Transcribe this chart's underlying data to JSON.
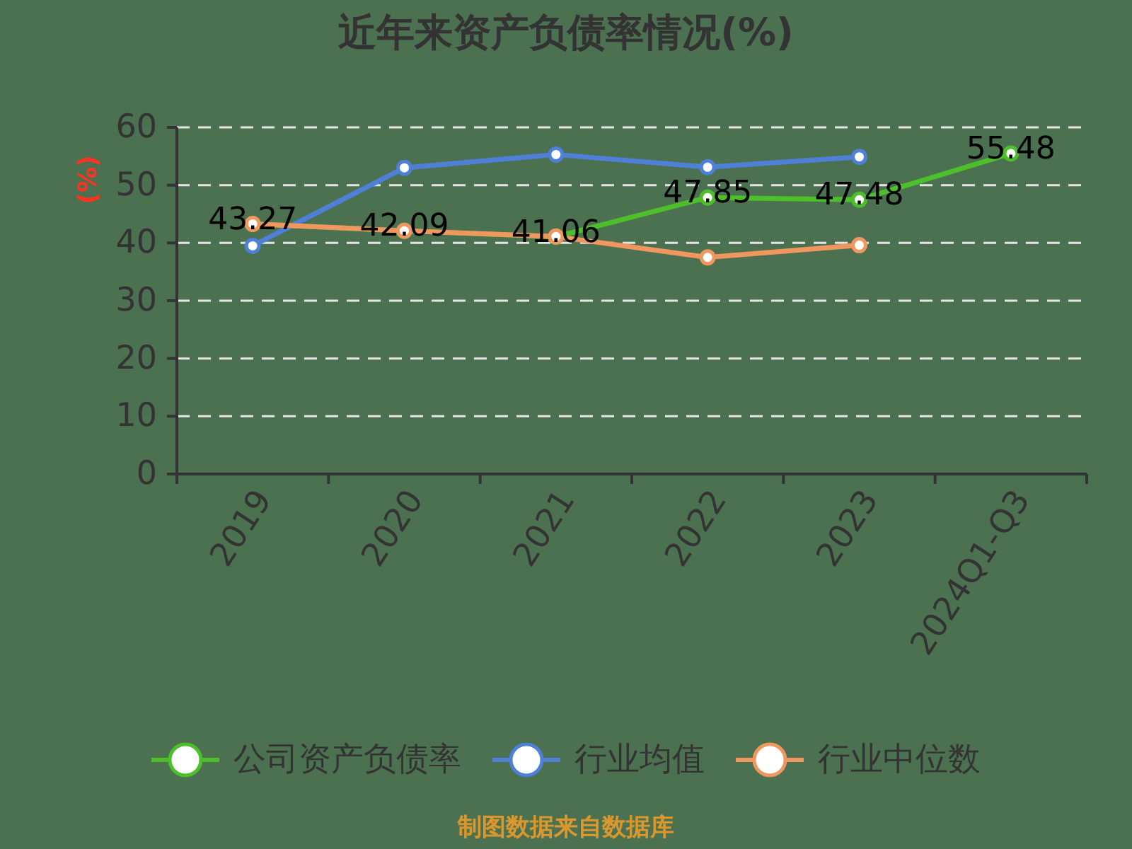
{
  "chart_data": {
    "type": "line",
    "title": "近年来资产负债率情况(%)",
    "ylabel": "(%)",
    "categories": [
      "2019",
      "2020",
      "2021",
      "2022",
      "2023",
      "2024Q1-Q3"
    ],
    "series": [
      {
        "name": "公司资产负债率",
        "color": "#4dbf2b",
        "values": [
          43.27,
          42.09,
          41.06,
          47.85,
          47.48,
          55.48
        ],
        "value_labels": [
          "43.27",
          "42.09",
          "41.06",
          "47.85",
          "47.48",
          "55.48"
        ]
      },
      {
        "name": "行业均值",
        "color": "#4f80d8",
        "values": [
          39.5,
          53.0,
          55.3,
          53.1,
          54.9,
          null
        ]
      },
      {
        "name": "行业中位数",
        "color": "#f0975f",
        "values": [
          43.3,
          42.1,
          41.1,
          37.5,
          39.6,
          null
        ]
      }
    ],
    "ylim": [
      0,
      60
    ],
    "yticks": [
      0,
      10,
      20,
      30,
      40,
      50,
      60
    ],
    "grid": "y",
    "legend": "bottom",
    "marker": "circle",
    "line_style": "solid",
    "annotations": [
      "制图数据来自数据库"
    ]
  }
}
